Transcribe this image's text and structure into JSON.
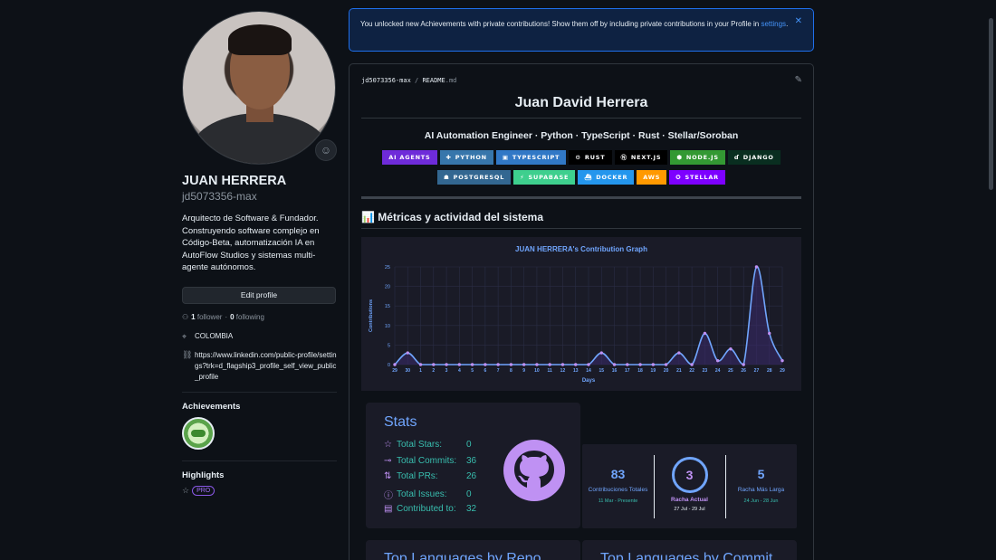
{
  "profile": {
    "name": "JUAN HERRERA",
    "login": "jd5073356-max",
    "bio": "Arquitecto de Software & Fundador. Construyendo software complejo en Código-Beta, automatización IA en AutoFlow Studios y sistemas multi-agente autónomos.",
    "edit_label": "Edit profile",
    "followers_count": "1",
    "followers_label": "follower",
    "following_count": "0",
    "following_label": "following",
    "location": "COLOMBIA",
    "link": "https://www.linkedin.com/public-profile/settings?trk=d_flagship3_profile_self_view_public_profile",
    "achievements_title": "Achievements",
    "highlights_title": "Highlights",
    "pro_label": "PRO"
  },
  "banner": {
    "text": "You unlocked new Achievements with private contributions! Show them off by including private contributions in your Profile in",
    "link_text": "settings",
    "suffix": "."
  },
  "readme": {
    "owner": "jd5073356-max",
    "separator": "/",
    "file": "README",
    "ext": ".md",
    "title": "Juan David Herrera",
    "subtitle": "AI Automation Engineer · Python · TypeScript · Rust · Stellar/Soroban",
    "section_title": "📊 Métricas y actividad del sistema",
    "badges": [
      {
        "label": "AI AGENTS",
        "color": "#6e2bd9",
        "glyph": ""
      },
      {
        "label": "PYTHON",
        "color": "#3776ab",
        "glyph": "✚"
      },
      {
        "label": "TYPESCRIPT",
        "color": "#3178c6",
        "glyph": "▣"
      },
      {
        "label": "RUST",
        "color": "#000000",
        "glyph": "⚙"
      },
      {
        "label": "NEXT.JS",
        "color": "#000000",
        "glyph": "Ⓝ"
      },
      {
        "label": "NODE.JS",
        "color": "#339933",
        "glyph": "⬢"
      },
      {
        "label": "DJANGO",
        "color": "#092e20",
        "glyph": "ɗ"
      },
      {
        "label": "POSTGRESQL",
        "color": "#336791",
        "glyph": "☗"
      },
      {
        "label": "SUPABASE",
        "color": "#3ecf8e",
        "glyph": "⚡"
      },
      {
        "label": "DOCKER",
        "color": "#2496ed",
        "glyph": "⛴"
      },
      {
        "label": "AWS",
        "color": "#ff9900",
        "glyph": ""
      },
      {
        "label": "STELLAR",
        "color": "#7d00ff",
        "glyph": "✪"
      }
    ]
  },
  "chart_data": {
    "type": "area",
    "title": "JUAN HERRERA's Contribution Graph",
    "xlabel": "Days",
    "ylabel": "Contributions",
    "x": [
      "29",
      "30",
      "1",
      "2",
      "3",
      "4",
      "5",
      "6",
      "7",
      "8",
      "9",
      "10",
      "11",
      "12",
      "13",
      "14",
      "15",
      "16",
      "17",
      "18",
      "19",
      "20",
      "21",
      "22",
      "23",
      "24",
      "25",
      "26",
      "27",
      "28",
      "29"
    ],
    "values": [
      0,
      3,
      0,
      0,
      0,
      0,
      0,
      0,
      0,
      0,
      0,
      0,
      0,
      0,
      0,
      0,
      3,
      0,
      0,
      0,
      0,
      0,
      3,
      0,
      8,
      1,
      4,
      0,
      25,
      8,
      1
    ],
    "yticks": [
      0,
      5,
      10,
      15,
      20,
      25
    ],
    "ylim": [
      0,
      25
    ],
    "grid": true,
    "colors": {
      "line": "#70a5fd",
      "point": "#bf91f3",
      "title": "#70a5fd"
    }
  },
  "stats": {
    "title": "Stats",
    "rows": [
      {
        "icon": "star-icon",
        "glyph": "☆",
        "label": "Total Stars:",
        "value": "0"
      },
      {
        "icon": "commit-icon",
        "glyph": "⊸",
        "label": "Total Commits:",
        "value": "36"
      },
      {
        "icon": "pr-icon",
        "glyph": "⇅",
        "label": "Total PRs:",
        "value": "26"
      },
      {
        "icon": "issue-icon",
        "glyph": "ⓘ",
        "label": "Total Issues:",
        "value": "0"
      },
      {
        "icon": "repo-icon",
        "glyph": "▤",
        "label": "Contributed to:",
        "value": "32"
      }
    ]
  },
  "streak": {
    "total": {
      "value": "83",
      "label": "Contribuciones Totales",
      "range": "11 Mar - Presente"
    },
    "current": {
      "value": "3",
      "label": "Racha Actual",
      "range": "27 Jul - 29 Jul"
    },
    "longest": {
      "value": "5",
      "label": "Racha Más Larga",
      "range": "24 Jun - 28 Jun"
    }
  },
  "languages": {
    "repo_title": "Top Languages by Repo",
    "commit_title": "Top Languages by Commit"
  }
}
